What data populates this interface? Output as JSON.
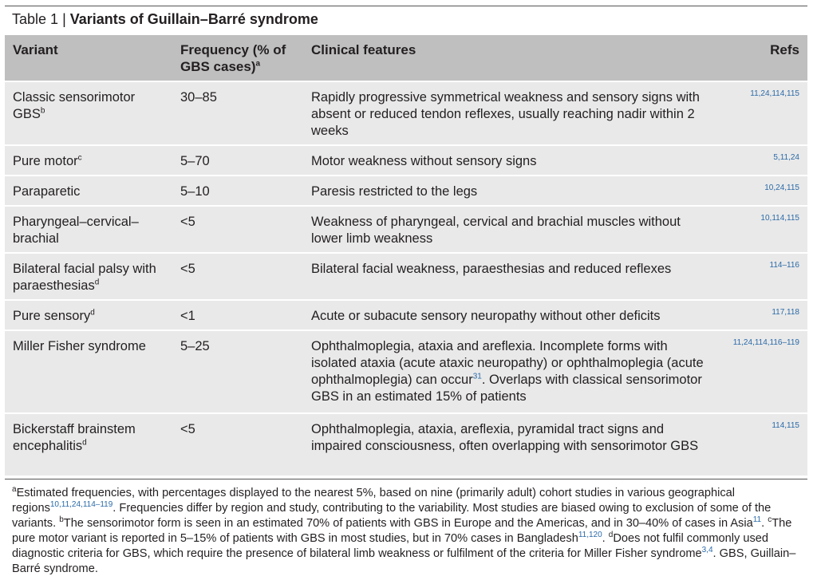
{
  "table": {
    "number": "Table 1",
    "separator": "|",
    "title": "Variants of Guillain–Barré syndrome"
  },
  "headers": {
    "variant": "Variant",
    "frequency": "Frequency (% of GBS cases)",
    "frequency_mark": "a",
    "features": "Clinical features",
    "refs": "Refs"
  },
  "rows": [
    {
      "variant": "Classic sensorimotor GBS",
      "mark": "b",
      "frequency": "30–85",
      "features": "Rapidly progressive symmetrical weakness and sensory signs with absent or reduced tendon reflexes, usually reaching nadir within 2 weeks",
      "refs": "11,24,114,115"
    },
    {
      "variant": "Pure motor",
      "mark": "c",
      "frequency": "5–70",
      "features": "Motor weakness without sensory signs",
      "refs": "5,11,24"
    },
    {
      "variant": "Paraparetic",
      "mark": "",
      "frequency": "5–10",
      "features": "Paresis restricted to the legs",
      "refs": "10,24,115"
    },
    {
      "variant": "Pharyngeal–cervical–brachial",
      "mark": "",
      "frequency": "<5",
      "features": "Weakness of pharyngeal, cervical and brachial muscles without lower limb weakness",
      "refs": "10,114,115"
    },
    {
      "variant": "Bilateral facial palsy with paraesthesias",
      "mark": "d",
      "frequency": "<5",
      "features": "Bilateral facial weakness, paraesthesias and reduced reflexes",
      "refs": "114–116"
    },
    {
      "variant": "Pure sensory",
      "mark": "d",
      "frequency": "<1",
      "features": "Acute or subacute sensory neuropathy without other deficits",
      "refs": "117,118"
    },
    {
      "variant": "Miller Fisher syndrome",
      "mark": "",
      "frequency": "5–25",
      "features_part1": "Ophthalmoplegia, ataxia and areflexia. Incomplete forms with isolated ataxia (acute ataxic neuropathy) or ophthalmoplegia (acute ophthalmoplegia) can occur",
      "features_cite": "31",
      "features_part2": ". Overlaps with classical sensorimotor GBS in an estimated 15% of patients",
      "refs": "11,24,114,116–119"
    },
    {
      "variant": "Bickerstaff brainstem encephalitis",
      "mark": "d",
      "frequency": "<5",
      "features": "Ophthalmoplegia, ataxia, areflexia, pyramidal tract signs and impaired consciousness, often overlapping with sensorimotor GBS",
      "refs": "114,115"
    }
  ],
  "footnotes": {
    "a_mark": "a",
    "a_text1": "Estimated frequencies, with percentages displayed to the nearest 5%, based on nine (primarily adult) cohort studies in various geographical regions",
    "a_cite": "10,11,24,114–119",
    "a_text2": ". Frequencies differ by region and study, contributing to the variability. Most studies are biased owing to exclusion of some of the variants. ",
    "b_mark": "b",
    "b_text1": "The sensorimotor form is seen in an estimated 70% of patients with GBS in Europe and the Americas, and in 30–40% of cases in Asia",
    "b_cite": "11",
    "b_text2": ". ",
    "c_mark": "c",
    "c_text1": "The pure motor variant is reported in 5–15% of patients with GBS in most studies, but in 70% cases in Bangladesh",
    "c_cite": "11,120",
    "c_text2": ". ",
    "d_mark": "d",
    "d_text1": "Does not fulfil commonly used diagnostic criteria for GBS, which require the presence of bilateral limb weakness or fulfilment of the criteria for Miller Fisher syndrome",
    "d_cite": "3,4",
    "d_text2": ". GBS, Guillain–Barré syndrome."
  }
}
